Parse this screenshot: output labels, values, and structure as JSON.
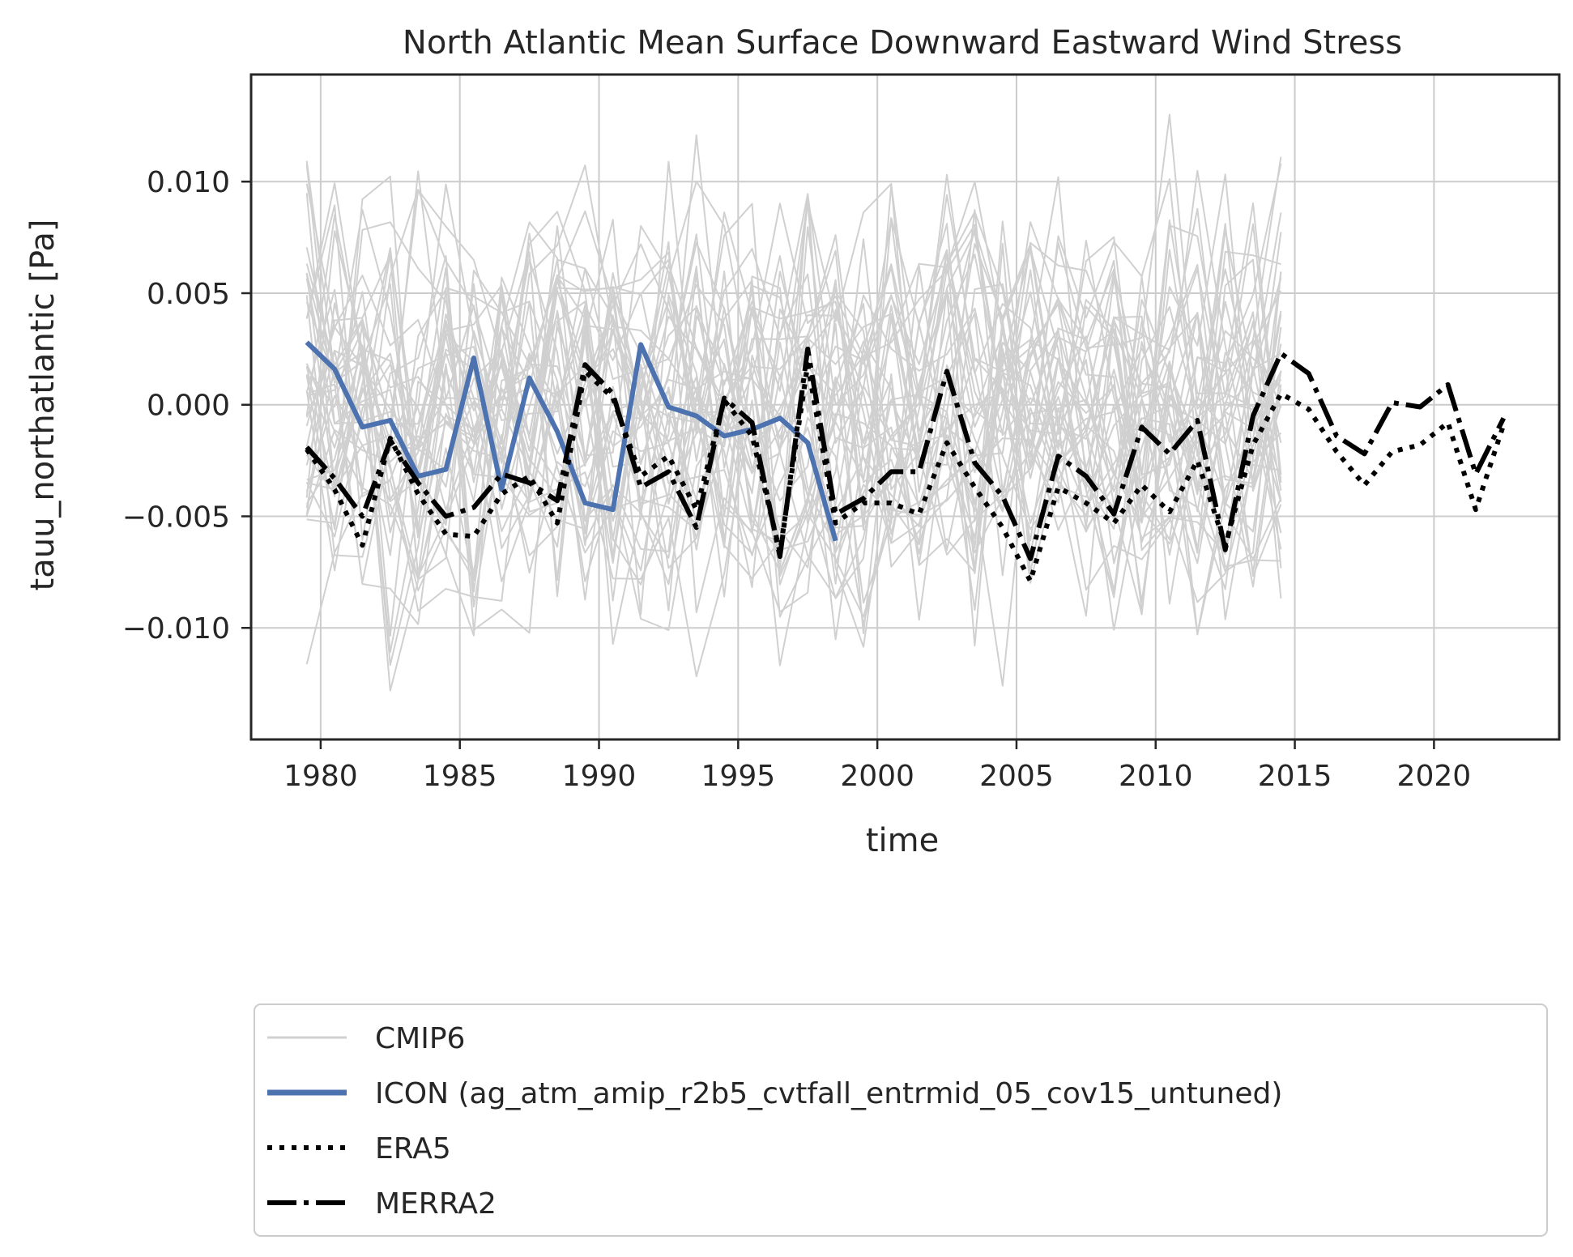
{
  "chart_data": {
    "type": "line",
    "title": "North Atlantic Mean Surface Downward Eastward Wind Stress",
    "xlabel": "time",
    "ylabel": "tauu_northatlantic [Pa]",
    "xlim": [
      1977.5,
      2024.5
    ],
    "ylim": [
      -0.015,
      0.0148
    ],
    "xticks": [
      1980,
      1985,
      1990,
      1995,
      2000,
      2005,
      2010,
      2015,
      2020
    ],
    "xtick_labels": [
      "1980",
      "1985",
      "1990",
      "1995",
      "2000",
      "2005",
      "2010",
      "2015",
      "2020"
    ],
    "yticks": [
      0.01,
      0.005,
      0.0,
      -0.005,
      -0.01
    ],
    "ytick_labels": [
      "0.010",
      "0.005",
      "0.000",
      "−0.005",
      "−0.010"
    ],
    "grid": true,
    "legend": {
      "placement": "below",
      "entries": [
        {
          "label": "CMIP6",
          "color": "#d0d0d0",
          "style": "solid-thin"
        },
        {
          "label": "ICON (ag_atm_amip_r2b5_cvtfall_entrmid_05_cov15_untuned)",
          "color": "#4c72b0",
          "style": "solid"
        },
        {
          "label": "ERA5",
          "color": "#000000",
          "style": "dotted"
        },
        {
          "label": "MERRA2",
          "color": "#000000",
          "style": "dashdot"
        }
      ]
    },
    "cmip6": {
      "name": "CMIP6",
      "color": "#d0d0d0",
      "member_count": 40,
      "x_start": 1979.5,
      "x_end": 2014.5,
      "value_range": [
        -0.0135,
        0.0135
      ]
    },
    "series": [
      {
        "name": "ICON (ag_atm_amip_r2b5_cvtfall_entrmid_05_cov15_untuned)",
        "color": "#4c72b0",
        "style": "solid",
        "x": [
          1979.5,
          1980.5,
          1981.5,
          1982.5,
          1983.5,
          1984.5,
          1985.5,
          1986.5,
          1987.5,
          1988.5,
          1989.5,
          1990.5,
          1991.5,
          1992.5,
          1993.5,
          1994.5,
          1995.5,
          1996.5,
          1997.5,
          1998.5
        ],
        "values": [
          0.0028,
          0.0016,
          -0.001,
          -0.0007,
          -0.0032,
          -0.0029,
          0.0021,
          -0.0038,
          0.0012,
          -0.0012,
          -0.0044,
          -0.0047,
          0.0027,
          -0.0001,
          -0.0005,
          -0.0014,
          -0.0011,
          -0.0006,
          -0.0017,
          -0.0061
        ]
      },
      {
        "name": "ERA5",
        "color": "#000000",
        "style": "dotted",
        "x": [
          1979.5,
          1980.5,
          1981.5,
          1982.5,
          1983.5,
          1984.5,
          1985.5,
          1986.5,
          1987.5,
          1988.5,
          1989.5,
          1990.5,
          1991.5,
          1992.5,
          1993.5,
          1994.5,
          1995.5,
          1996.5,
          1997.5,
          1998.5,
          1999.5,
          2000.5,
          2001.5,
          2002.5,
          2003.5,
          2004.5,
          2005.5,
          2006.5,
          2007.5,
          2008.5,
          2009.5,
          2010.5,
          2011.5,
          2012.5,
          2013.5,
          2014.5,
          2015.5,
          2016.5,
          2017.5,
          2018.5,
          2019.5,
          2020.5,
          2021.5,
          2022.5
        ],
        "values": [
          -0.002,
          -0.0038,
          -0.0063,
          -0.0015,
          -0.004,
          -0.0058,
          -0.0059,
          -0.004,
          -0.0032,
          -0.0053,
          0.0015,
          0.0003,
          -0.0032,
          -0.0023,
          -0.0047,
          0.0002,
          -0.0014,
          -0.0066,
          0.0018,
          -0.0053,
          -0.0044,
          -0.0044,
          -0.0049,
          -0.0017,
          -0.0037,
          -0.0055,
          -0.0079,
          -0.0037,
          -0.0044,
          -0.0053,
          -0.0036,
          -0.0048,
          -0.0025,
          -0.0063,
          -0.0018,
          0.0005,
          -0.0002,
          -0.0021,
          -0.0036,
          -0.0021,
          -0.0018,
          -0.0008,
          -0.0047,
          -0.0009
        ]
      },
      {
        "name": "MERRA2",
        "color": "#000000",
        "style": "dashdot",
        "x": [
          1979.5,
          1980.5,
          1981.5,
          1982.5,
          1983.5,
          1984.5,
          1985.5,
          1986.5,
          1987.5,
          1988.5,
          1989.5,
          1990.5,
          1991.5,
          1992.5,
          1993.5,
          1994.5,
          1995.5,
          1996.5,
          1997.5,
          1998.5,
          1999.5,
          2000.5,
          2001.5,
          2002.5,
          2003.5,
          2004.5,
          2005.5,
          2006.5,
          2007.5,
          2008.5,
          2009.5,
          2010.5,
          2011.5,
          2012.5,
          2013.5,
          2014.5,
          2015.5,
          2016.5,
          2017.5,
          2018.5,
          2019.5,
          2020.5,
          2021.5,
          2022.5
        ],
        "values": [
          -0.0019,
          -0.0033,
          -0.005,
          -0.0016,
          -0.0035,
          -0.005,
          -0.0046,
          -0.0031,
          -0.0035,
          -0.0043,
          0.0018,
          0.0005,
          -0.0037,
          -0.003,
          -0.0055,
          0.0003,
          -0.0008,
          -0.0068,
          0.0025,
          -0.0049,
          -0.0042,
          -0.003,
          -0.003,
          0.0015,
          -0.0026,
          -0.0041,
          -0.0069,
          -0.0023,
          -0.0032,
          -0.0049,
          -0.001,
          -0.0022,
          -0.0007,
          -0.0065,
          -0.0005,
          0.0023,
          0.0014,
          -0.0014,
          -0.0022,
          0.0001,
          -0.0001,
          0.0009,
          -0.0031,
          -0.0006
        ]
      }
    ]
  }
}
